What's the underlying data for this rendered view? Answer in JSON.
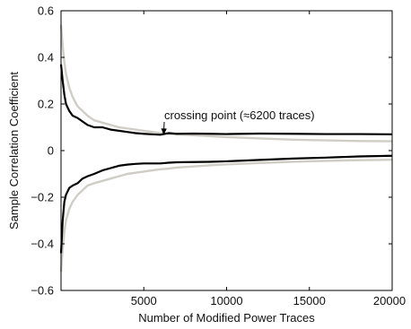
{
  "chart_data": {
    "type": "line",
    "xlabel": "Number of Modified Power Traces",
    "ylabel": "Sample Correlation Coefficient",
    "xlim": [
      0,
      20000
    ],
    "ylim": [
      -0.6,
      0.6
    ],
    "x_ticks": [
      5000,
      10000,
      15000,
      20000
    ],
    "x_tick_labels": [
      "5000",
      "10000",
      "15000",
      "20000"
    ],
    "y_ticks": [
      -0.6,
      -0.4,
      -0.2,
      0,
      0.2,
      0.4,
      0.6
    ],
    "y_tick_labels": [
      "−0.6",
      "−0.4",
      "−0.2",
      "0",
      "0.2",
      "0.4",
      "0.6"
    ],
    "grid": false,
    "annotation": {
      "text": "crossing point (≈6200 traces)",
      "x": 6200,
      "y": 0.068
    },
    "series": [
      {
        "color": "#cfcdc6",
        "x": [
          0,
          100,
          200,
          300,
          500,
          700,
          1000,
          1300,
          1600,
          2000,
          2500,
          3000,
          3500,
          4000,
          4500,
          5000,
          5500,
          6000,
          6500,
          7000,
          8000,
          9000,
          10000,
          12000,
          14000,
          16000,
          18000,
          20000
        ],
        "values": [
          0.54,
          0.45,
          0.38,
          0.33,
          0.27,
          0.23,
          0.19,
          0.17,
          0.15,
          0.13,
          0.12,
          0.11,
          0.1,
          0.095,
          0.09,
          0.085,
          0.08,
          0.075,
          0.072,
          0.07,
          0.066,
          0.062,
          0.058,
          0.052,
          0.047,
          0.044,
          0.041,
          0.04
        ]
      },
      {
        "color": "#000000",
        "x": [
          0,
          100,
          200,
          300,
          500,
          700,
          1000,
          1300,
          1600,
          2000,
          2500,
          3000,
          3500,
          4000,
          4500,
          5000,
          5500,
          6000,
          6500,
          7000,
          8000,
          9000,
          10000,
          12000,
          14000,
          16000,
          18000,
          20000
        ],
        "values": [
          0.37,
          0.3,
          0.24,
          0.2,
          0.17,
          0.15,
          0.14,
          0.125,
          0.11,
          0.1,
          0.1,
          0.09,
          0.085,
          0.08,
          0.075,
          0.072,
          0.07,
          0.068,
          0.075,
          0.072,
          0.073,
          0.072,
          0.071,
          0.073,
          0.072,
          0.071,
          0.071,
          0.07
        ]
      },
      {
        "color": "#000000",
        "x": [
          0,
          100,
          200,
          300,
          500,
          700,
          1000,
          1300,
          1600,
          2000,
          2500,
          3000,
          3500,
          4000,
          4500,
          5000,
          5500,
          6000,
          6500,
          7000,
          8000,
          9000,
          10000,
          12000,
          14000,
          16000,
          18000,
          20000
        ],
        "values": [
          -0.44,
          -0.3,
          -0.22,
          -0.19,
          -0.16,
          -0.15,
          -0.14,
          -0.12,
          -0.11,
          -0.1,
          -0.085,
          -0.075,
          -0.065,
          -0.06,
          -0.057,
          -0.055,
          -0.055,
          -0.055,
          -0.052,
          -0.05,
          -0.049,
          -0.048,
          -0.046,
          -0.04,
          -0.034,
          -0.03,
          -0.025,
          -0.022
        ]
      },
      {
        "color": "#cfcdc6",
        "x": [
          0,
          100,
          200,
          300,
          500,
          700,
          1000,
          1300,
          1600,
          2000,
          2500,
          3000,
          3500,
          4000,
          4500,
          5000,
          5500,
          6000,
          6500,
          7000,
          8000,
          9000,
          10000,
          12000,
          14000,
          16000,
          18000,
          20000
        ],
        "values": [
          -0.52,
          -0.42,
          -0.35,
          -0.3,
          -0.25,
          -0.22,
          -0.19,
          -0.17,
          -0.15,
          -0.14,
          -0.13,
          -0.12,
          -0.11,
          -0.1,
          -0.095,
          -0.09,
          -0.085,
          -0.08,
          -0.077,
          -0.073,
          -0.068,
          -0.063,
          -0.059,
          -0.053,
          -0.048,
          -0.044,
          -0.041,
          -0.039
        ]
      }
    ]
  }
}
